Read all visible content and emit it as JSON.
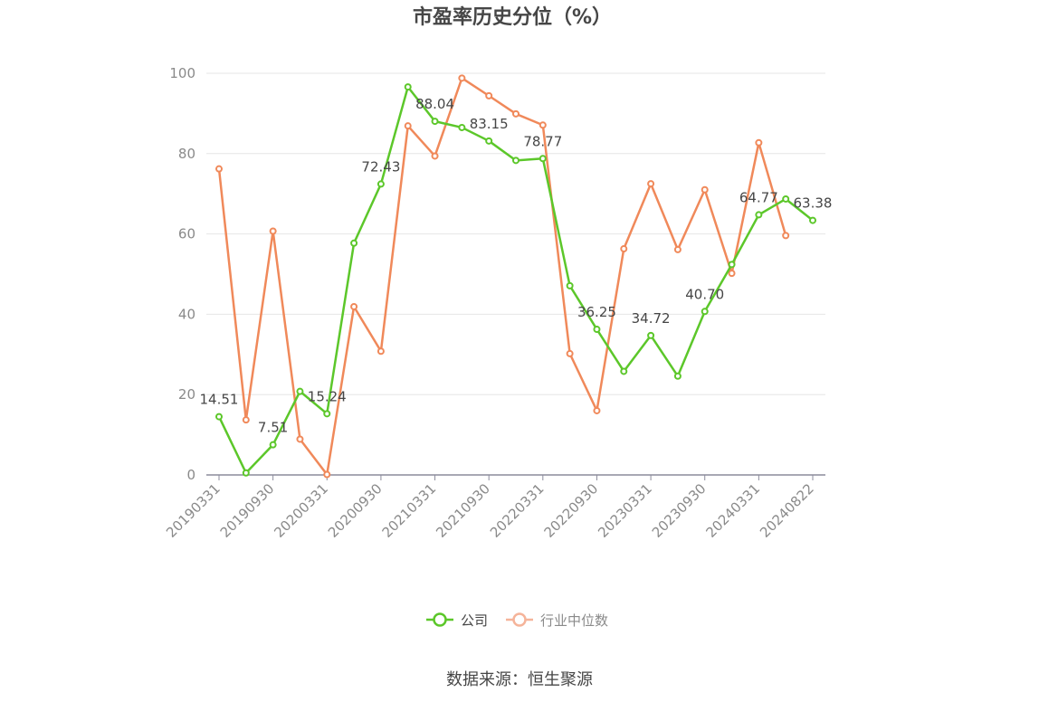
{
  "chart_data": {
    "type": "line",
    "title": "市盈率历史分位（%）",
    "source": "数据来源：恒生聚源",
    "ylim": [
      0,
      100
    ],
    "yticks": [
      0,
      20,
      40,
      60,
      80,
      100
    ],
    "grid": true,
    "legend_position": "bottom",
    "xtick_labels": [
      "20190331",
      "20190930",
      "20200331",
      "20200930",
      "20210331",
      "20210930",
      "20220331",
      "20220930",
      "20230331",
      "20230930",
      "20240331",
      "20240822"
    ],
    "x": [
      "20190331",
      "20190630",
      "20190930",
      "20191231",
      "20200331",
      "20200630",
      "20200930",
      "20201231",
      "20210331",
      "20210630",
      "20210930",
      "20211231",
      "20220331",
      "20220630",
      "20220930",
      "20221231",
      "20230331",
      "20230630",
      "20230930",
      "20231231",
      "20240331",
      "20240630",
      "20240822"
    ],
    "series": [
      {
        "name": "公司",
        "color": "#5cc72a",
        "values": [
          14.51,
          0.5,
          7.51,
          20.8,
          15.24,
          57.7,
          72.43,
          96.6,
          88.04,
          86.5,
          83.15,
          78.3,
          78.77,
          47.1,
          36.25,
          25.8,
          34.72,
          24.6,
          40.7,
          52.4,
          64.77,
          68.7,
          63.38
        ],
        "labels": [
          "14.51",
          "",
          "7.51",
          "",
          "15.24",
          "",
          "72.43",
          "",
          "88.04",
          "",
          "83.15",
          "",
          "78.77",
          "",
          "36.25",
          "",
          "34.72",
          "",
          "40.70",
          "",
          "64.77",
          "",
          "63.38"
        ]
      },
      {
        "name": "行业中位数",
        "color": "#f0895a",
        "values": [
          76.2,
          13.7,
          60.7,
          8.9,
          0.1,
          41.9,
          30.8,
          86.9,
          79.4,
          98.8,
          94.4,
          89.9,
          87.1,
          30.2,
          16.0,
          56.3,
          72.5,
          56.1,
          71.0,
          50.2,
          82.7,
          59.6,
          null
        ]
      }
    ]
  },
  "legend": {
    "items": [
      {
        "label": "公司",
        "color": "#5cc72a",
        "text_color": "#464646"
      },
      {
        "label": "行业中位数",
        "color": "#f5b49a",
        "text_color": "#8a8a8a"
      }
    ]
  }
}
